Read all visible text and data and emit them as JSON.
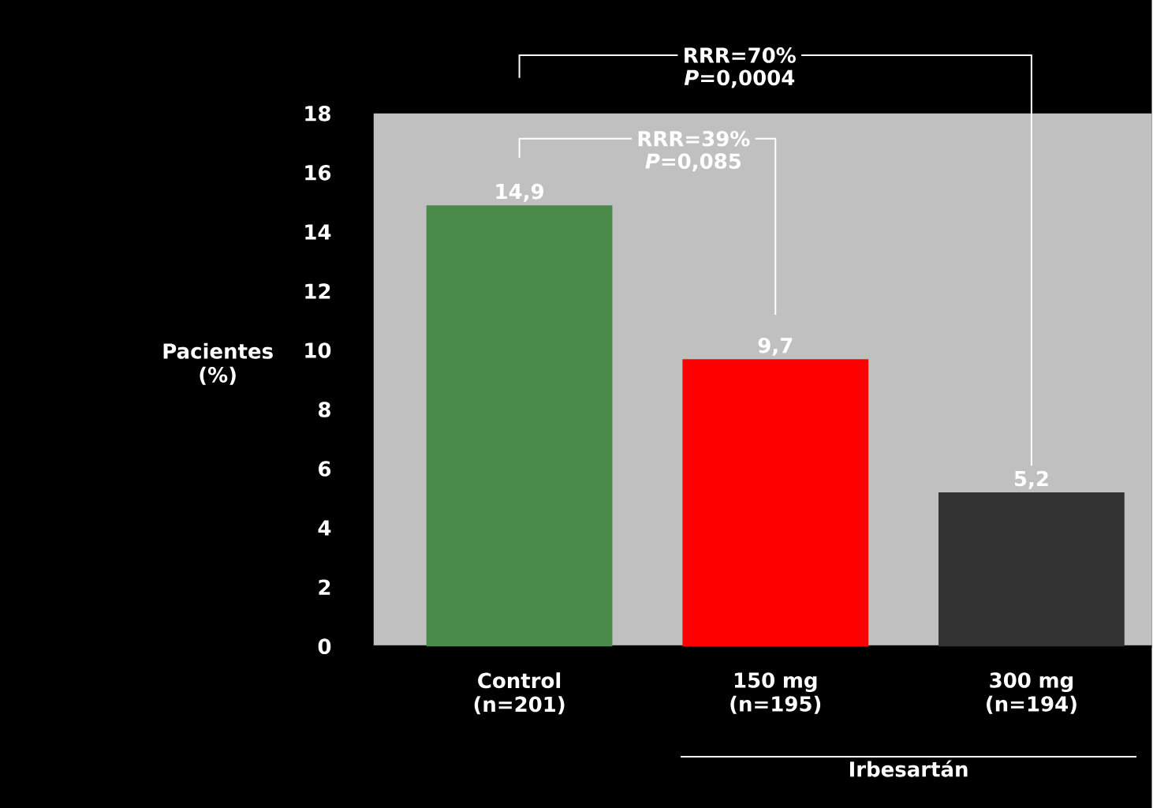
{
  "chart_data": {
    "type": "bar",
    "ylabel": "Pacientes (%)",
    "categories": [
      "Control (n=201)",
      "150 mg (n=195)",
      "300 mg (n=194)"
    ],
    "values": [
      14.9,
      9.7,
      5.2
    ],
    "colors": [
      "#4a8b4c",
      "#ff0000",
      "#333333"
    ],
    "value_labels": [
      "14,9",
      "9,7",
      "5,2"
    ],
    "ylim": [
      0,
      18
    ],
    "yticks": [
      0,
      2,
      4,
      6,
      8,
      10,
      12,
      14,
      16,
      18
    ],
    "annotations": [
      "RRR=39%",
      "*P*=0,085",
      "RRR=70%",
      "*P*=0,0004",
      "Irbesartán"
    ]
  }
}
